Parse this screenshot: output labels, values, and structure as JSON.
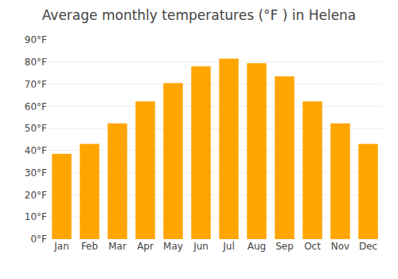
{
  "chart_data": {
    "type": "bar",
    "title": "Average monthly temperatures (°F ) in Helena",
    "categories": [
      "Jan",
      "Feb",
      "Mar",
      "Apr",
      "May",
      "Jun",
      "Jul",
      "Aug",
      "Sep",
      "Oct",
      "Nov",
      "Dec"
    ],
    "values": [
      38.5,
      43.0,
      52.3,
      62.2,
      70.5,
      78.0,
      81.5,
      79.5,
      73.5,
      62.2,
      52.3,
      43.0
    ],
    "color": "#FFA500",
    "ylim": [
      0,
      90
    ],
    "yticks": [
      {
        "value": 0,
        "label": "0°F"
      },
      {
        "value": 10,
        "label": "10°F"
      },
      {
        "value": 20,
        "label": "20°F"
      },
      {
        "value": 30,
        "label": "30°F"
      },
      {
        "value": 40,
        "label": "40°F"
      },
      {
        "value": 50,
        "label": "50°F"
      },
      {
        "value": 60,
        "label": "60°F"
      },
      {
        "value": 70,
        "label": "70°F"
      },
      {
        "value": 80,
        "label": "80°F"
      },
      {
        "value": 90,
        "label": "90°F"
      }
    ],
    "grid": true
  }
}
